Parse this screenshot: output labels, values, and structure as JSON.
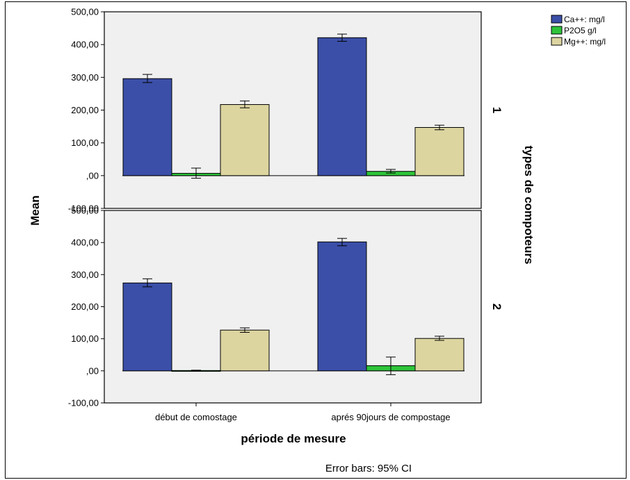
{
  "chart_data": {
    "type": "bar",
    "xlabel": "période de mesure",
    "ylabel": "Mean",
    "facet_label": "types de compoteurs",
    "footnote": "Error bars: 95% CI",
    "categories": [
      "début de comostage",
      "aprés 90jours de compostage"
    ],
    "ylim": [
      -100,
      500
    ],
    "yticks": [
      -100,
      0,
      100,
      200,
      300,
      400,
      500
    ],
    "ytick_labels": [
      "-100,00",
      ",00",
      "100,00",
      "200,00",
      "300,00",
      "400,00",
      "500,00"
    ],
    "grid": false,
    "legend_position": "top-right",
    "series": [
      {
        "name": "Ca++: mg/l",
        "color": "#3b4fa8"
      },
      {
        "name": "P2O5 g/l",
        "color": "#2ec43a"
      },
      {
        "name": "Mg++: mg/l",
        "color": "#dcd5a0"
      }
    ],
    "panels": [
      {
        "label": "1",
        "values": [
          [
            296,
            7,
            217
          ],
          [
            421,
            13,
            147
          ]
        ],
        "ci_low": [
          [
            284,
            -8,
            207
          ],
          [
            410,
            8,
            140
          ]
        ],
        "ci_high": [
          [
            309,
            23,
            228
          ],
          [
            432,
            19,
            154
          ]
        ]
      },
      {
        "label": "2",
        "values": [
          [
            274,
            1,
            127
          ],
          [
            402,
            16,
            101
          ]
        ],
        "ci_low": [
          [
            262,
            0,
            120
          ],
          [
            390,
            -12,
            95
          ]
        ],
        "ci_high": [
          [
            287,
            2,
            134
          ],
          [
            413,
            43,
            108
          ]
        ]
      }
    ]
  }
}
